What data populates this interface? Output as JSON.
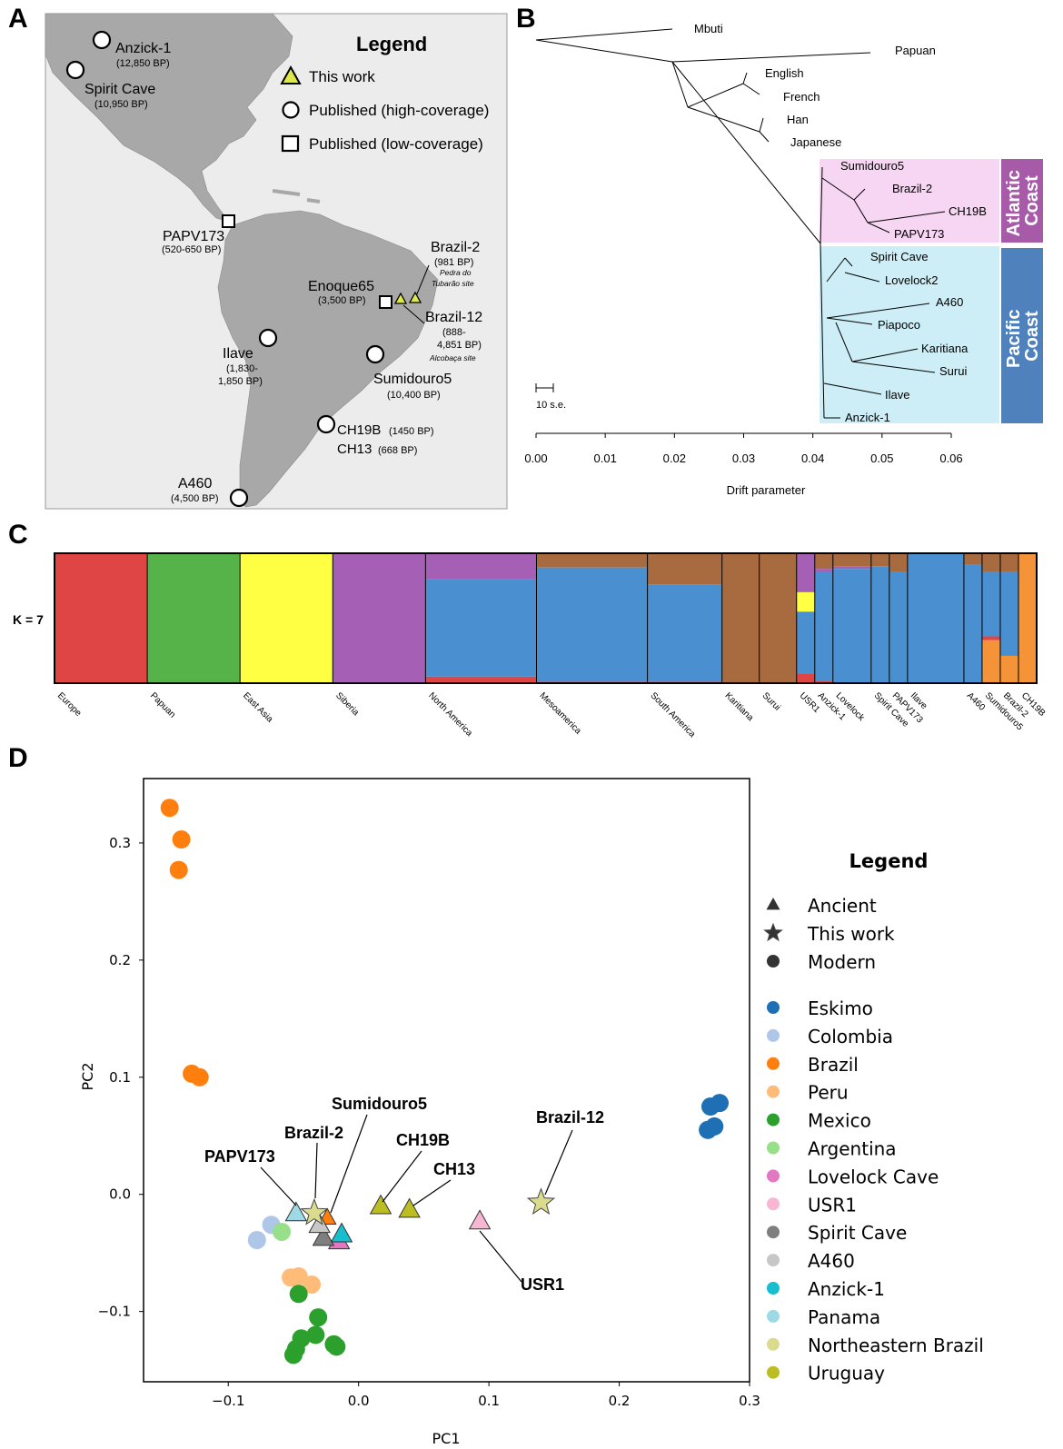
{
  "panels": {
    "a": "A",
    "b": "B",
    "c": "C",
    "d": "D"
  },
  "map": {
    "legend_title": "Legend",
    "legend": [
      {
        "shape": "triangle",
        "label": "This work"
      },
      {
        "shape": "circle",
        "label": "Published (high-coverage)"
      },
      {
        "shape": "square",
        "label": "Published (low-coverage)"
      }
    ],
    "sites": [
      {
        "name": "Anzick-1",
        "date": "(12,850 BP)",
        "shape": "circle"
      },
      {
        "name": "Spirit Cave",
        "date": "(10,950 BP)",
        "shape": "circle"
      },
      {
        "name": "PAPV173",
        "date": "(520-650 BP)",
        "shape": "square"
      },
      {
        "name": "Brazil-2",
        "date": "(981 BP)",
        "note": "Pedra do Tubarão site",
        "shape": "triangle"
      },
      {
        "name": "Enoque65",
        "date": "(3,500 BP)",
        "shape": "square"
      },
      {
        "name": "Brazil-12",
        "date": "(888- 4,851 BP)",
        "note": "Alcobaça site",
        "shape": "triangle"
      },
      {
        "name": "Ilave",
        "date": "(1,830- 1,850 BP)",
        "shape": "circle"
      },
      {
        "name": "Sumidouro5",
        "date": "(10,400 BP)",
        "shape": "circle"
      },
      {
        "name": "CH19B",
        "date": "(1450 BP)",
        "shape": "circle"
      },
      {
        "name": "CH13",
        "date": "(668 BP)",
        "shape": "circle"
      },
      {
        "name": "A460",
        "date": "(4,500 BP)",
        "shape": "circle"
      }
    ]
  },
  "chart_data": [
    {
      "type": "tree",
      "panel": "B",
      "xlabel": "Drift parameter",
      "xlim": [
        0.0,
        0.06
      ],
      "xticks": [
        "0.00",
        "0.01",
        "0.02",
        "0.03",
        "0.04",
        "0.05",
        "0.06"
      ],
      "scale_bar": "10 s.e.",
      "leaves": [
        "Mbuti",
        "Papuan",
        "English",
        "French",
        "Han",
        "Japanese",
        "Sumidouro5",
        "Brazil-2",
        "CH19B",
        "PAPV173",
        "Spirit Cave",
        "Lovelock2",
        "A460",
        "Piapoco",
        "Karitiana",
        "Surui",
        "Ilave",
        "Anzick-1"
      ],
      "groups": [
        {
          "label": "Atlantic Coast",
          "color": "#a65aa8",
          "fill": "#f6d6f3",
          "members": [
            "Sumidouro5",
            "Brazil-2",
            "CH19B",
            "PAPV173"
          ]
        },
        {
          "label": "Pacific Coast",
          "color": "#4f81bd",
          "fill": "#cdeef6",
          "members": [
            "Spirit Cave",
            "Lovelock2",
            "A460",
            "Piapoco",
            "Karitiana",
            "Surui",
            "Ilave",
            "Anzick-1"
          ]
        }
      ]
    },
    {
      "type": "bar",
      "stacked": true,
      "panel": "C",
      "ylabel": "K = 7",
      "populations": [
        "Europe",
        "Papuan",
        "East Asia",
        "Siberia",
        "North America",
        "Mesoamerica",
        "South America",
        "Karitiana",
        "Surui",
        "USR1",
        "Anzick-1",
        "Lovelock",
        "Spirit Cave",
        "PAPV173",
        "Ilave",
        "A460",
        "Sumidouro5",
        "Brazil-2",
        "CH19B"
      ],
      "components": [
        "red",
        "green",
        "yellow",
        "purple",
        "blue",
        "brown",
        "orange"
      ],
      "component_colors": [
        "#e04545",
        "#55b34a",
        "#ffff44",
        "#a55fb5",
        "#4a8fd0",
        "#a86a3f",
        "#f49338"
      ],
      "proportions": [
        [
          1,
          0,
          0,
          0,
          0,
          0,
          0
        ],
        [
          0,
          1,
          0,
          0,
          0,
          0,
          0
        ],
        [
          0,
          0,
          1,
          0,
          0,
          0,
          0
        ],
        [
          0,
          0,
          0,
          1,
          0,
          0,
          0
        ],
        [
          0.05,
          0,
          0,
          0.2,
          0.75,
          0,
          0
        ],
        [
          0.01,
          0,
          0,
          0,
          0.88,
          0.11,
          0
        ],
        [
          0.01,
          0,
          0,
          0,
          0.75,
          0.24,
          0
        ],
        [
          0,
          0,
          0,
          0,
          0,
          1,
          0
        ],
        [
          0,
          0,
          0,
          0,
          0,
          1,
          0
        ],
        [
          0.07,
          0,
          0.15,
          0.3,
          0.48,
          0,
          0
        ],
        [
          0.02,
          0,
          0,
          0.02,
          0.84,
          0.12,
          0
        ],
        [
          0,
          0,
          0,
          0.02,
          0.88,
          0.1,
          0
        ],
        [
          0,
          0,
          0,
          0,
          0.9,
          0.1,
          0
        ],
        [
          0,
          0,
          0,
          0,
          0.86,
          0.14,
          0
        ],
        [
          0,
          0,
          0,
          0,
          1,
          0,
          0
        ],
        [
          0,
          0,
          0,
          0,
          0.91,
          0.09,
          0
        ],
        [
          0.03,
          0,
          0,
          0,
          0.5,
          0.14,
          0.33
        ],
        [
          0,
          0,
          0,
          0,
          0.65,
          0.14,
          0.21
        ],
        [
          0,
          0,
          0,
          0,
          0,
          0,
          1
        ]
      ]
    },
    {
      "type": "scatter",
      "panel": "D",
      "xlabel": "PC1",
      "ylabel": "PC2",
      "xlim": [
        -0.165,
        0.3
      ],
      "ylim": [
        -0.16,
        0.355
      ],
      "xticks": [
        "−0.1",
        "0.0",
        "0.1",
        "0.2",
        "0.3"
      ],
      "yticks": [
        "−0.1",
        "0.0",
        "0.1",
        "0.2",
        "0.3"
      ],
      "legend_title": "Legend",
      "shape_legend": [
        {
          "marker": "triangle",
          "label": "Ancient"
        },
        {
          "marker": "star",
          "label": "This work"
        },
        {
          "marker": "circle",
          "label": "Modern"
        }
      ],
      "series": [
        {
          "name": "Eskimo",
          "color": "#1f6fb4",
          "marker": "circle",
          "points": [
            [
              0.27,
              0.075
            ],
            [
              0.277,
              0.078
            ],
            [
              0.268,
              0.055
            ],
            [
              0.273,
              0.058
            ]
          ]
        },
        {
          "name": "Colombia",
          "color": "#aec7e8",
          "marker": "circle",
          "points": [
            [
              -0.067,
              -0.026
            ],
            [
              -0.078,
              -0.039
            ]
          ]
        },
        {
          "name": "Brazil",
          "color": "#ff7f0e",
          "marker": "circle",
          "points": [
            [
              -0.145,
              0.33
            ],
            [
              -0.136,
              0.303
            ],
            [
              -0.138,
              0.277
            ],
            [
              -0.128,
              0.103
            ],
            [
              -0.122,
              0.1
            ],
            [
              -0.024,
              -0.02
            ]
          ]
        },
        {
          "name": "Peru",
          "color": "#ffbb78",
          "marker": "circle",
          "points": [
            [
              -0.052,
              -0.071
            ],
            [
              -0.046,
              -0.07
            ],
            [
              -0.036,
              -0.077
            ]
          ]
        },
        {
          "name": "Mexico",
          "color": "#2ca02c",
          "marker": "circle",
          "points": [
            [
              -0.046,
              -0.085
            ],
            [
              -0.031,
              -0.105
            ],
            [
              -0.033,
              -0.12
            ],
            [
              -0.044,
              -0.123
            ],
            [
              -0.048,
              -0.132
            ],
            [
              -0.019,
              -0.128
            ],
            [
              -0.017,
              -0.13
            ],
            [
              -0.05,
              -0.137
            ]
          ]
        },
        {
          "name": "Argentina",
          "color": "#98df8a",
          "marker": "circle",
          "points": [
            [
              -0.059,
              -0.032
            ]
          ]
        },
        {
          "name": "Lovelock Cave",
          "color": "#e377c2",
          "marker": "triangle",
          "points": [
            [
              -0.015,
              -0.04
            ]
          ]
        },
        {
          "name": "USR1",
          "color": "#f7b6d2",
          "marker": "triangle",
          "points": [
            [
              0.093,
              -0.023
            ]
          ]
        },
        {
          "name": "Spirit Cave",
          "color": "#7f7f7f",
          "marker": "triangle",
          "points": [
            [
              -0.027,
              -0.037
            ]
          ]
        },
        {
          "name": "A460",
          "color": "#c7c7c7",
          "marker": "triangle",
          "points": [
            [
              -0.03,
              -0.026
            ]
          ]
        },
        {
          "name": "Anzick-1",
          "color": "#17becf",
          "marker": "triangle",
          "points": [
            [
              -0.013,
              -0.034
            ]
          ]
        },
        {
          "name": "Panama",
          "color": "#9edae5",
          "marker": "triangle",
          "points": [
            [
              -0.048,
              -0.016
            ]
          ]
        },
        {
          "name": "Northeastern Brazil",
          "color": "#dbdb8d",
          "marker": "star",
          "points": [
            [
              -0.034,
              -0.016
            ],
            [
              0.14,
              -0.007
            ]
          ]
        },
        {
          "name": "Uruguay",
          "color": "#bcbd22",
          "marker": "triangle",
          "points": [
            [
              0.017,
              -0.01
            ],
            [
              0.039,
              -0.013
            ]
          ]
        }
      ],
      "annotations": [
        {
          "text": "Sumidouro5",
          "point": [
            -0.024,
            -0.02
          ]
        },
        {
          "text": "Brazil-2",
          "point": [
            -0.034,
            -0.016
          ]
        },
        {
          "text": "PAPV173",
          "point": [
            -0.048,
            -0.016
          ]
        },
        {
          "text": "CH19B",
          "point": [
            0.017,
            -0.01
          ]
        },
        {
          "text": "CH13",
          "point": [
            0.039,
            -0.013
          ]
        },
        {
          "text": "Brazil-12",
          "point": [
            0.14,
            -0.007
          ]
        },
        {
          "text": "USR1",
          "point": [
            0.093,
            -0.023
          ]
        }
      ]
    }
  ]
}
